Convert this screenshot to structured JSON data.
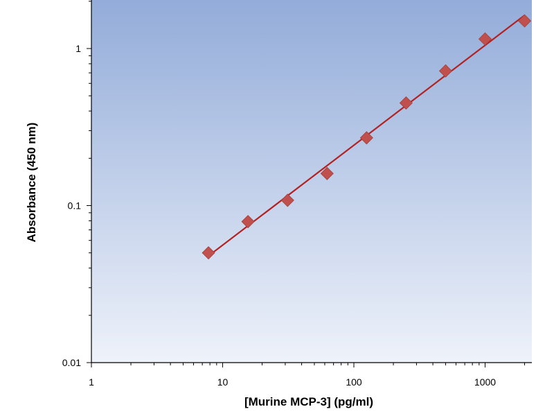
{
  "chart_data": {
    "type": "scatter",
    "title": "",
    "xlabel": "[Murine MCP-3] (pg/ml)",
    "ylabel": "Absorbance (450 nm)",
    "x_scale": "log",
    "y_scale": "log",
    "xlim": [
      1,
      2000
    ],
    "ylim": [
      0.01,
      2
    ],
    "x_ticks": [
      1,
      10,
      100,
      1000
    ],
    "x_tick_labels": [
      "1",
      "10",
      "100",
      "1000"
    ],
    "y_ticks": [
      0.01,
      0.1,
      1
    ],
    "y_tick_labels": [
      "0.01",
      "0.1",
      "1"
    ],
    "grid": false,
    "legend": "none",
    "series": [
      {
        "x": [
          7.8,
          15.6,
          31.25,
          62.5,
          125,
          250,
          500,
          1000,
          2000
        ],
        "y": [
          0.05,
          0.079,
          0.108,
          0.16,
          0.27,
          0.45,
          0.72,
          1.15,
          1.5
        ],
        "marker": "diamond",
        "fit_line": true
      }
    ],
    "colors": {
      "marker": "#c0504d",
      "line": "#b22222",
      "plot_bg_top": "#93acd9",
      "plot_bg_bottom": "#eef2fa",
      "axis": "#000000"
    }
  }
}
